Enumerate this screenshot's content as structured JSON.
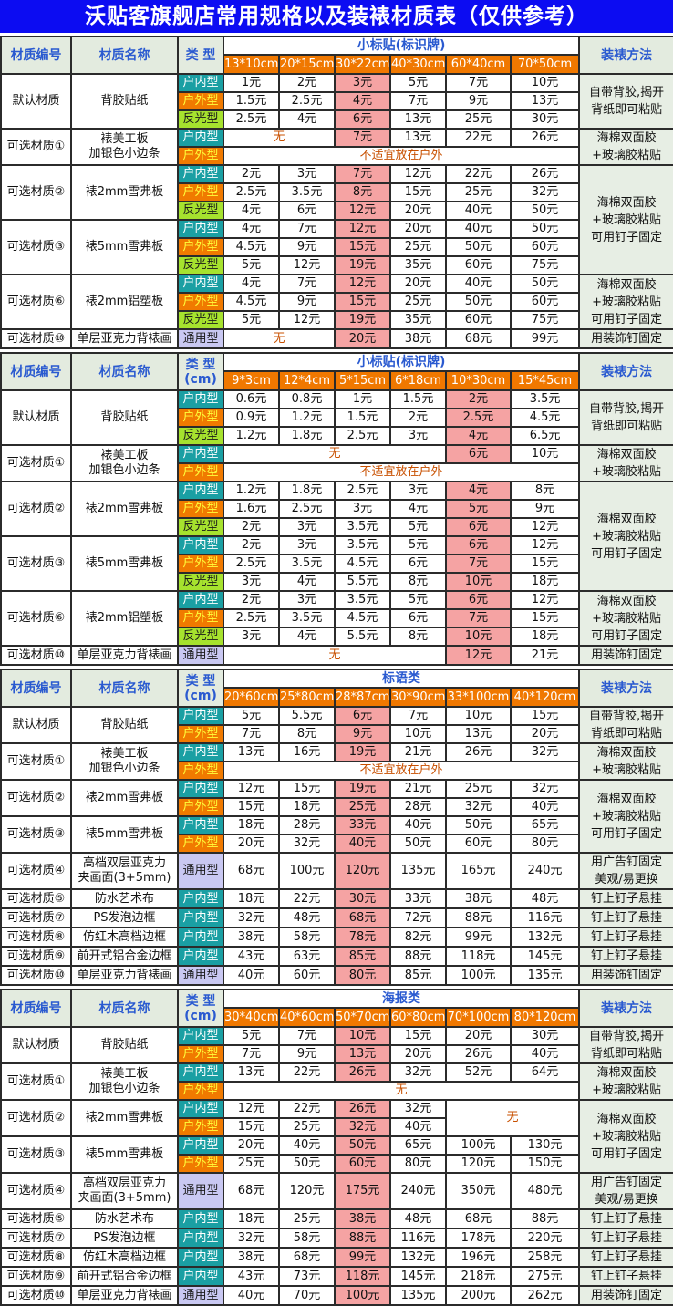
{
  "title": "沃贴客旗舰店常用规格以及装裱材质表（仅供参考）",
  "headers": {
    "code": "材质编号",
    "name": "材质名称",
    "method": "装裱方法"
  },
  "type_styles": {
    "户内型": {
      "bg": "#1a9fa3",
      "fg": "#ffffff"
    },
    "户外型": {
      "bg": "#f07a00",
      "fg": "#ffff3a"
    },
    "反光型": {
      "bg": "#a6e22e",
      "fg": "#1a1a1a"
    },
    "通用型": {
      "bg": "#c9c8f2",
      "fg": "#1a1a1a"
    }
  },
  "sections": [
    {
      "type_label": "类 型",
      "category": "小标贴(标识牌)",
      "sizes": [
        "13*10cm",
        "20*15cm",
        "30*22cm",
        "40*30cm",
        "60*40cm",
        "70*50cm"
      ],
      "highlight": 2,
      "groups": [
        {
          "code": "默认材质",
          "name": "背胶贴纸",
          "method": "自带背胶,揭开\n背纸即可粘贴",
          "rows": [
            {
              "type": "户内型",
              "cells": [
                "1元",
                "2元",
                "3元",
                "5元",
                "7元",
                "10元"
              ]
            },
            {
              "type": "户外型",
              "cells": [
                "1.5元",
                "2.5元",
                "4元",
                "7元",
                "9元",
                "13元"
              ]
            },
            {
              "type": "反光型",
              "cells": [
                "2.5元",
                "4元",
                "6元",
                "13元",
                "25元",
                "30元"
              ]
            }
          ]
        },
        {
          "code": "可选材质①",
          "name": "裱美工板\n加银色小边条",
          "method": "海棉双面胶\n+玻璃胶粘贴",
          "rows": [
            {
              "type": "户内型",
              "cells": [
                {
                  "text": "无",
                  "span": 2
                },
                "7元",
                "13元",
                "22元",
                "26元"
              ]
            },
            {
              "type": "户外型",
              "cells": [
                {
                  "text": "不适宜放在户外",
                  "span": 6
                }
              ]
            }
          ]
        },
        {
          "code": "可选材质②",
          "name": "裱2mm雪弗板",
          "method": "海棉双面胶\n+玻璃胶粘贴\n可用钉子固定",
          "method_groups": 2,
          "rows": [
            {
              "type": "户内型",
              "cells": [
                "2元",
                "3元",
                "7元",
                "12元",
                "22元",
                "26元"
              ]
            },
            {
              "type": "户外型",
              "cells": [
                "2.5元",
                "3.5元",
                "8元",
                "15元",
                "25元",
                "32元"
              ]
            },
            {
              "type": "反光型",
              "cells": [
                "4元",
                "6元",
                "12元",
                "20元",
                "40元",
                "50元"
              ]
            }
          ]
        },
        {
          "code": "可选材质③",
          "name": "裱5mm雪弗板",
          "rows": [
            {
              "type": "户内型",
              "cells": [
                "4元",
                "7元",
                "12元",
                "20元",
                "40元",
                "50元"
              ]
            },
            {
              "type": "户外型",
              "cells": [
                "4.5元",
                "9元",
                "15元",
                "25元",
                "50元",
                "60元"
              ]
            },
            {
              "type": "反光型",
              "cells": [
                "5元",
                "12元",
                "19元",
                "35元",
                "60元",
                "75元"
              ]
            }
          ]
        },
        {
          "code": "可选材质⑥",
          "name": "裱2mm铝塑板",
          "method": "海棉双面胶\n+玻璃胶粘贴\n可用钉子固定",
          "rows": [
            {
              "type": "户内型",
              "cells": [
                "4元",
                "7元",
                "12元",
                "20元",
                "40元",
                "50元"
              ]
            },
            {
              "type": "户外型",
              "cells": [
                "4.5元",
                "9元",
                "15元",
                "25元",
                "50元",
                "60元"
              ]
            },
            {
              "type": "反光型",
              "cells": [
                "5元",
                "12元",
                "19元",
                "35元",
                "60元",
                "75元"
              ]
            }
          ]
        },
        {
          "code": "可选材质⑩",
          "name": "单层亚克力背裱画",
          "method": "用装饰钉固定",
          "rows": [
            {
              "type": "通用型",
              "cells": [
                {
                  "text": "无",
                  "span": 2
                },
                "20元",
                "38元",
                "68元",
                "99元"
              ]
            }
          ]
        }
      ]
    },
    {
      "type_label": "类 型\n(cm)",
      "category": "小标贴(标识牌)",
      "sizes": [
        "9*3cm",
        "12*4cm",
        "5*15cm",
        "6*18cm",
        "10*30cm",
        "15*45cm"
      ],
      "highlight": 4,
      "groups": [
        {
          "code": "默认材质",
          "name": "背胶贴纸",
          "method": "自带背胶,揭开\n背纸即可粘贴",
          "rows": [
            {
              "type": "户内型",
              "cells": [
                "0.6元",
                "0.8元",
                "1元",
                "1.5元",
                "2元",
                "3.5元"
              ]
            },
            {
              "type": "户外型",
              "cells": [
                "0.9元",
                "1.2元",
                "1.5元",
                "2元",
                "2.5元",
                "4.5元"
              ]
            },
            {
              "type": "反光型",
              "cells": [
                "1.2元",
                "1.8元",
                "2.5元",
                "3元",
                "4元",
                "6.5元"
              ]
            }
          ]
        },
        {
          "code": "可选材质①",
          "name": "裱美工板\n加银色小边条",
          "method": "海棉双面胶\n+玻璃胶粘贴",
          "rows": [
            {
              "type": "户内型",
              "cells": [
                {
                  "text": "无",
                  "span": 4
                },
                "6元",
                "10元"
              ]
            },
            {
              "type": "户外型",
              "cells": [
                {
                  "text": "不适宜放在户外",
                  "span": 6
                }
              ]
            }
          ]
        },
        {
          "code": "可选材质②",
          "name": "裱2mm雪弗板",
          "method": "海棉双面胶\n+玻璃胶粘贴\n可用钉子固定",
          "method_groups": 2,
          "rows": [
            {
              "type": "户内型",
              "cells": [
                "1.2元",
                "1.8元",
                "2.5元",
                "3元",
                "4元",
                "8元"
              ]
            },
            {
              "type": "户外型",
              "cells": [
                "1.6元",
                "2.5元",
                "3元",
                "4元",
                "5元",
                "9元"
              ]
            },
            {
              "type": "反光型",
              "cells": [
                "2元",
                "3元",
                "3.5元",
                "5元",
                "6元",
                "12元"
              ]
            }
          ]
        },
        {
          "code": "可选材质③",
          "name": "裱5mm雪弗板",
          "rows": [
            {
              "type": "户内型",
              "cells": [
                "2元",
                "3元",
                "3.5元",
                "5元",
                "6元",
                "12元"
              ]
            },
            {
              "type": "户外型",
              "cells": [
                "2.5元",
                "3.5元",
                "4.5元",
                "6元",
                "7元",
                "15元"
              ]
            },
            {
              "type": "反光型",
              "cells": [
                "3元",
                "4元",
                "5.5元",
                "8元",
                "10元",
                "18元"
              ]
            }
          ]
        },
        {
          "code": "可选材质⑥",
          "name": "裱2mm铝塑板",
          "method": "海棉双面胶\n+玻璃胶粘贴\n可用钉子固定",
          "rows": [
            {
              "type": "户内型",
              "cells": [
                "2元",
                "3元",
                "3.5元",
                "5元",
                "6元",
                "12元"
              ]
            },
            {
              "type": "户外型",
              "cells": [
                "2.5元",
                "3.5元",
                "4.5元",
                "6元",
                "7元",
                "15元"
              ]
            },
            {
              "type": "反光型",
              "cells": [
                "3元",
                "4元",
                "5.5元",
                "8元",
                "10元",
                "18元"
              ]
            }
          ]
        },
        {
          "code": "可选材质⑩",
          "name": "单层亚克力背裱画",
          "method": "用装饰钉固定",
          "rows": [
            {
              "type": "通用型",
              "cells": [
                {
                  "text": "无",
                  "span": 4
                },
                "12元",
                "21元"
              ]
            }
          ]
        }
      ]
    },
    {
      "type_label": "类 型\n(cm)",
      "category": "标语类",
      "sizes": [
        "20*60cm",
        "25*80cm",
        "28*87cm",
        "30*90cm",
        "33*100cm",
        "40*120cm"
      ],
      "highlight": 2,
      "groups": [
        {
          "code": "默认材质",
          "name": "背胶贴纸",
          "method": "自带背胶,揭开\n背纸即可粘贴",
          "rows": [
            {
              "type": "户内型",
              "cells": [
                "5元",
                "5.5元",
                "6元",
                "7元",
                "10元",
                "15元"
              ]
            },
            {
              "type": "户外型",
              "cells": [
                "7元",
                "8元",
                "9元",
                "10元",
                "13元",
                "20元"
              ]
            }
          ]
        },
        {
          "code": "可选材质①",
          "name": "裱美工板\n加银色小边条",
          "method": "海棉双面胶\n+玻璃胶粘贴",
          "rows": [
            {
              "type": "户内型",
              "cells": [
                "13元",
                "16元",
                "19元",
                "21元",
                "26元",
                "32元"
              ]
            },
            {
              "type": "户外型",
              "cells": [
                {
                  "text": "不适宜放在户外",
                  "span": 6
                }
              ]
            }
          ]
        },
        {
          "code": "可选材质②",
          "name": "裱2mm雪弗板",
          "method": "海棉双面胶\n+玻璃胶粘贴\n可用钉子固定",
          "method_groups": 2,
          "rows": [
            {
              "type": "户内型",
              "cells": [
                "12元",
                "15元",
                "19元",
                "21元",
                "25元",
                "32元"
              ]
            },
            {
              "type": "户外型",
              "cells": [
                "15元",
                "18元",
                "25元",
                "28元",
                "32元",
                "40元"
              ]
            }
          ]
        },
        {
          "code": "可选材质③",
          "name": "裱5mm雪弗板",
          "rows": [
            {
              "type": "户内型",
              "cells": [
                "18元",
                "28元",
                "33元",
                "40元",
                "50元",
                "65元"
              ]
            },
            {
              "type": "户外型",
              "cells": [
                "20元",
                "32元",
                "40元",
                "50元",
                "60元",
                "80元"
              ]
            }
          ]
        },
        {
          "code": "可选材质④",
          "name": "高档双层亚克力\n夹画面(3+5mm)",
          "method": "用广告钉固定\n美观/易更换",
          "rows": [
            {
              "type": "通用型",
              "cells": [
                "68元",
                "100元",
                "120元",
                "135元",
                "165元",
                "240元"
              ]
            }
          ]
        },
        {
          "code": "可选材质⑤",
          "name": "防水艺术布",
          "method": "钉上钉子悬挂",
          "rows": [
            {
              "type": "户内型",
              "cells": [
                "18元",
                "22元",
                "30元",
                "33元",
                "38元",
                "48元"
              ]
            }
          ]
        },
        {
          "code": "可选材质⑦",
          "name": "PS发泡边框",
          "method": "钉上钉子悬挂",
          "rows": [
            {
              "type": "户内型",
              "cells": [
                "32元",
                "48元",
                "68元",
                "72元",
                "88元",
                "116元"
              ]
            }
          ]
        },
        {
          "code": "可选材质⑧",
          "name": "仿红木高档边框",
          "method": "钉上钉子悬挂",
          "rows": [
            {
              "type": "户内型",
              "cells": [
                "38元",
                "58元",
                "78元",
                "82元",
                "99元",
                "132元"
              ]
            }
          ]
        },
        {
          "code": "可选材质⑨",
          "name": "前开式铝合金边框",
          "method": "钉上钉子悬挂",
          "rows": [
            {
              "type": "户内型",
              "cells": [
                "43元",
                "63元",
                "85元",
                "88元",
                "118元",
                "145元"
              ]
            }
          ]
        },
        {
          "code": "可选材质⑩",
          "name": "单层亚克力背裱画",
          "method": "用装饰钉固定",
          "rows": [
            {
              "type": "通用型",
              "cells": [
                "40元",
                "60元",
                "80元",
                "85元",
                "100元",
                "135元"
              ]
            }
          ]
        }
      ]
    },
    {
      "type_label": "类 型\n(cm)",
      "category": "海报类",
      "sizes": [
        "30*40cm",
        "40*60cm",
        "50*70cm",
        "60*80cm",
        "70*100cm",
        "80*120cm"
      ],
      "highlight": 2,
      "groups": [
        {
          "code": "默认材质",
          "name": "背胶贴纸",
          "method": "自带背胶,揭开\n背纸即可粘贴",
          "rows": [
            {
              "type": "户内型",
              "cells": [
                "5元",
                "7元",
                "10元",
                "15元",
                "20元",
                "30元"
              ]
            },
            {
              "type": "户外型",
              "cells": [
                "7元",
                "9元",
                "13元",
                "20元",
                "26元",
                "40元"
              ]
            }
          ]
        },
        {
          "code": "可选材质①",
          "name": "裱美工板\n加银色小边条",
          "method": "海棉双面胶\n+玻璃胶粘贴",
          "rows": [
            {
              "type": "户内型",
              "cells": [
                "13元",
                "22元",
                "26元",
                "32元",
                "52元",
                "64元"
              ]
            },
            {
              "type": "户外型",
              "cells": [
                {
                  "text": "无",
                  "span": 6
                }
              ]
            }
          ]
        },
        {
          "code": "可选材质②",
          "name": "裱2mm雪弗板",
          "method": "海棉双面胶\n+玻璃胶粘贴\n可用钉子固定",
          "method_groups": 2,
          "rows": [
            {
              "type": "户内型",
              "cells": [
                "12元",
                "22元",
                "26元",
                "32元",
                {
                  "text": "无",
                  "span": 2,
                  "rowspan": 2
                }
              ]
            },
            {
              "type": "户外型",
              "cells": [
                "15元",
                "25元",
                "32元",
                "40元"
              ]
            }
          ]
        },
        {
          "code": "可选材质③",
          "name": "裱5mm雪弗板",
          "rows": [
            {
              "type": "户内型",
              "cells": [
                "20元",
                "40元",
                "50元",
                "65元",
                "100元",
                "130元"
              ]
            },
            {
              "type": "户外型",
              "cells": [
                "25元",
                "50元",
                "60元",
                "80元",
                "120元",
                "150元"
              ]
            }
          ]
        },
        {
          "code": "可选材质④",
          "name": "高档双层亚克力\n夹画面(3+5mm)",
          "method": "用广告钉固定\n美观/易更换",
          "rows": [
            {
              "type": "通用型",
              "cells": [
                "68元",
                "120元",
                "175元",
                "240元",
                "350元",
                "480元"
              ]
            }
          ]
        },
        {
          "code": "可选材质⑤",
          "name": "防水艺术布",
          "method": "钉上钉子悬挂",
          "rows": [
            {
              "type": "户内型",
              "cells": [
                "18元",
                "25元",
                "38元",
                "48元",
                "68元",
                "88元"
              ]
            }
          ]
        },
        {
          "code": "可选材质⑦",
          "name": "PS发泡边框",
          "method": "钉上钉子悬挂",
          "rows": [
            {
              "type": "户内型",
              "cells": [
                "32元",
                "58元",
                "88元",
                "116元",
                "178元",
                "220元"
              ]
            }
          ]
        },
        {
          "code": "可选材质⑧",
          "name": "仿红木高档边框",
          "method": "钉上钉子悬挂",
          "rows": [
            {
              "type": "户内型",
              "cells": [
                "38元",
                "68元",
                "99元",
                "132元",
                "196元",
                "258元"
              ]
            }
          ]
        },
        {
          "code": "可选材质⑨",
          "name": "前开式铝合金边框",
          "method": "钉上钉子悬挂",
          "rows": [
            {
              "type": "户内型",
              "cells": [
                "43元",
                "73元",
                "118元",
                "145元",
                "218元",
                "275元"
              ]
            }
          ]
        },
        {
          "code": "可选材质⑩",
          "name": "单层亚克力背裱画",
          "method": "用装饰钉固定",
          "rows": [
            {
              "type": "通用型",
              "cells": [
                "40元",
                "70元",
                "100元",
                "135元",
                "200元",
                "262元"
              ]
            }
          ]
        }
      ]
    }
  ]
}
